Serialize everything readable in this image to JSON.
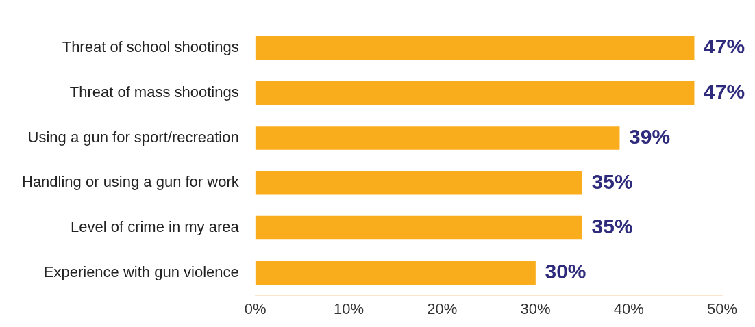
{
  "chart_data": {
    "type": "bar",
    "orientation": "horizontal",
    "categories": [
      "Threat of school shootings",
      "Threat of mass shootings",
      "Using a gun for sport/recreation",
      "Handling or using a gun for work",
      "Level of crime in my area",
      "Experience with gun violence"
    ],
    "values": [
      47,
      47,
      39,
      35,
      35,
      30
    ],
    "value_labels": [
      "47%",
      "47%",
      "39%",
      "35%",
      "35%",
      "30%"
    ],
    "color": "#f9ad1c",
    "xlim": [
      0,
      50
    ],
    "xticks": [
      {
        "value": 0,
        "label": "0%"
      },
      {
        "value": 10,
        "label": "10%"
      },
      {
        "value": 20,
        "label": "20%"
      },
      {
        "value": 30,
        "label": "30%"
      },
      {
        "value": 40,
        "label": "40%"
      },
      {
        "value": 50,
        "label": "50%"
      }
    ],
    "grid": false,
    "legend": false
  }
}
